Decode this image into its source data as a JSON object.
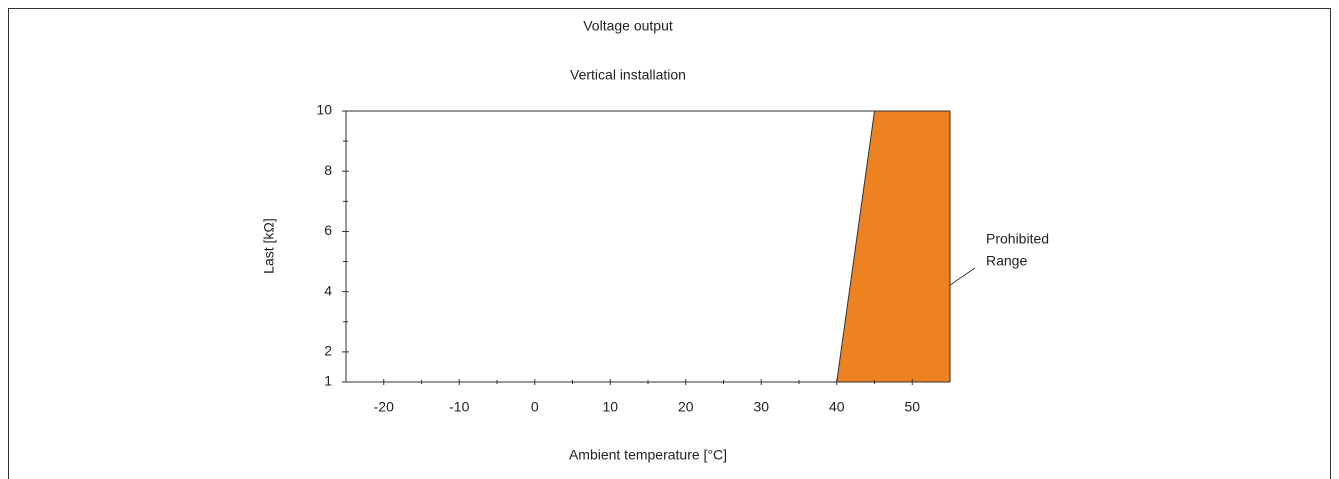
{
  "chart_data": {
    "type": "area",
    "title": "Voltage output",
    "subtitle": "Vertical installation",
    "x_label": "Ambient temperature [°C]",
    "y_label": "Last [kΩ]",
    "x": [
      40,
      45,
      55,
      55
    ],
    "values": [
      1,
      10,
      10,
      1
    ],
    "color": "#ef8220",
    "annotation": [
      "Prohibited",
      "Range"
    ],
    "xlim": [
      -25,
      55
    ],
    "xticks": [
      -20,
      -10,
      0,
      10,
      20,
      30,
      40,
      50
    ],
    "xminor_ticks": [
      -15,
      -5,
      5,
      15,
      25,
      35,
      45
    ],
    "ylim": [
      1,
      10
    ],
    "yticks": [
      1,
      2,
      4,
      6,
      8,
      10
    ],
    "yminor_ticks": [
      3,
      5,
      7,
      9
    ],
    "grid": false
  }
}
